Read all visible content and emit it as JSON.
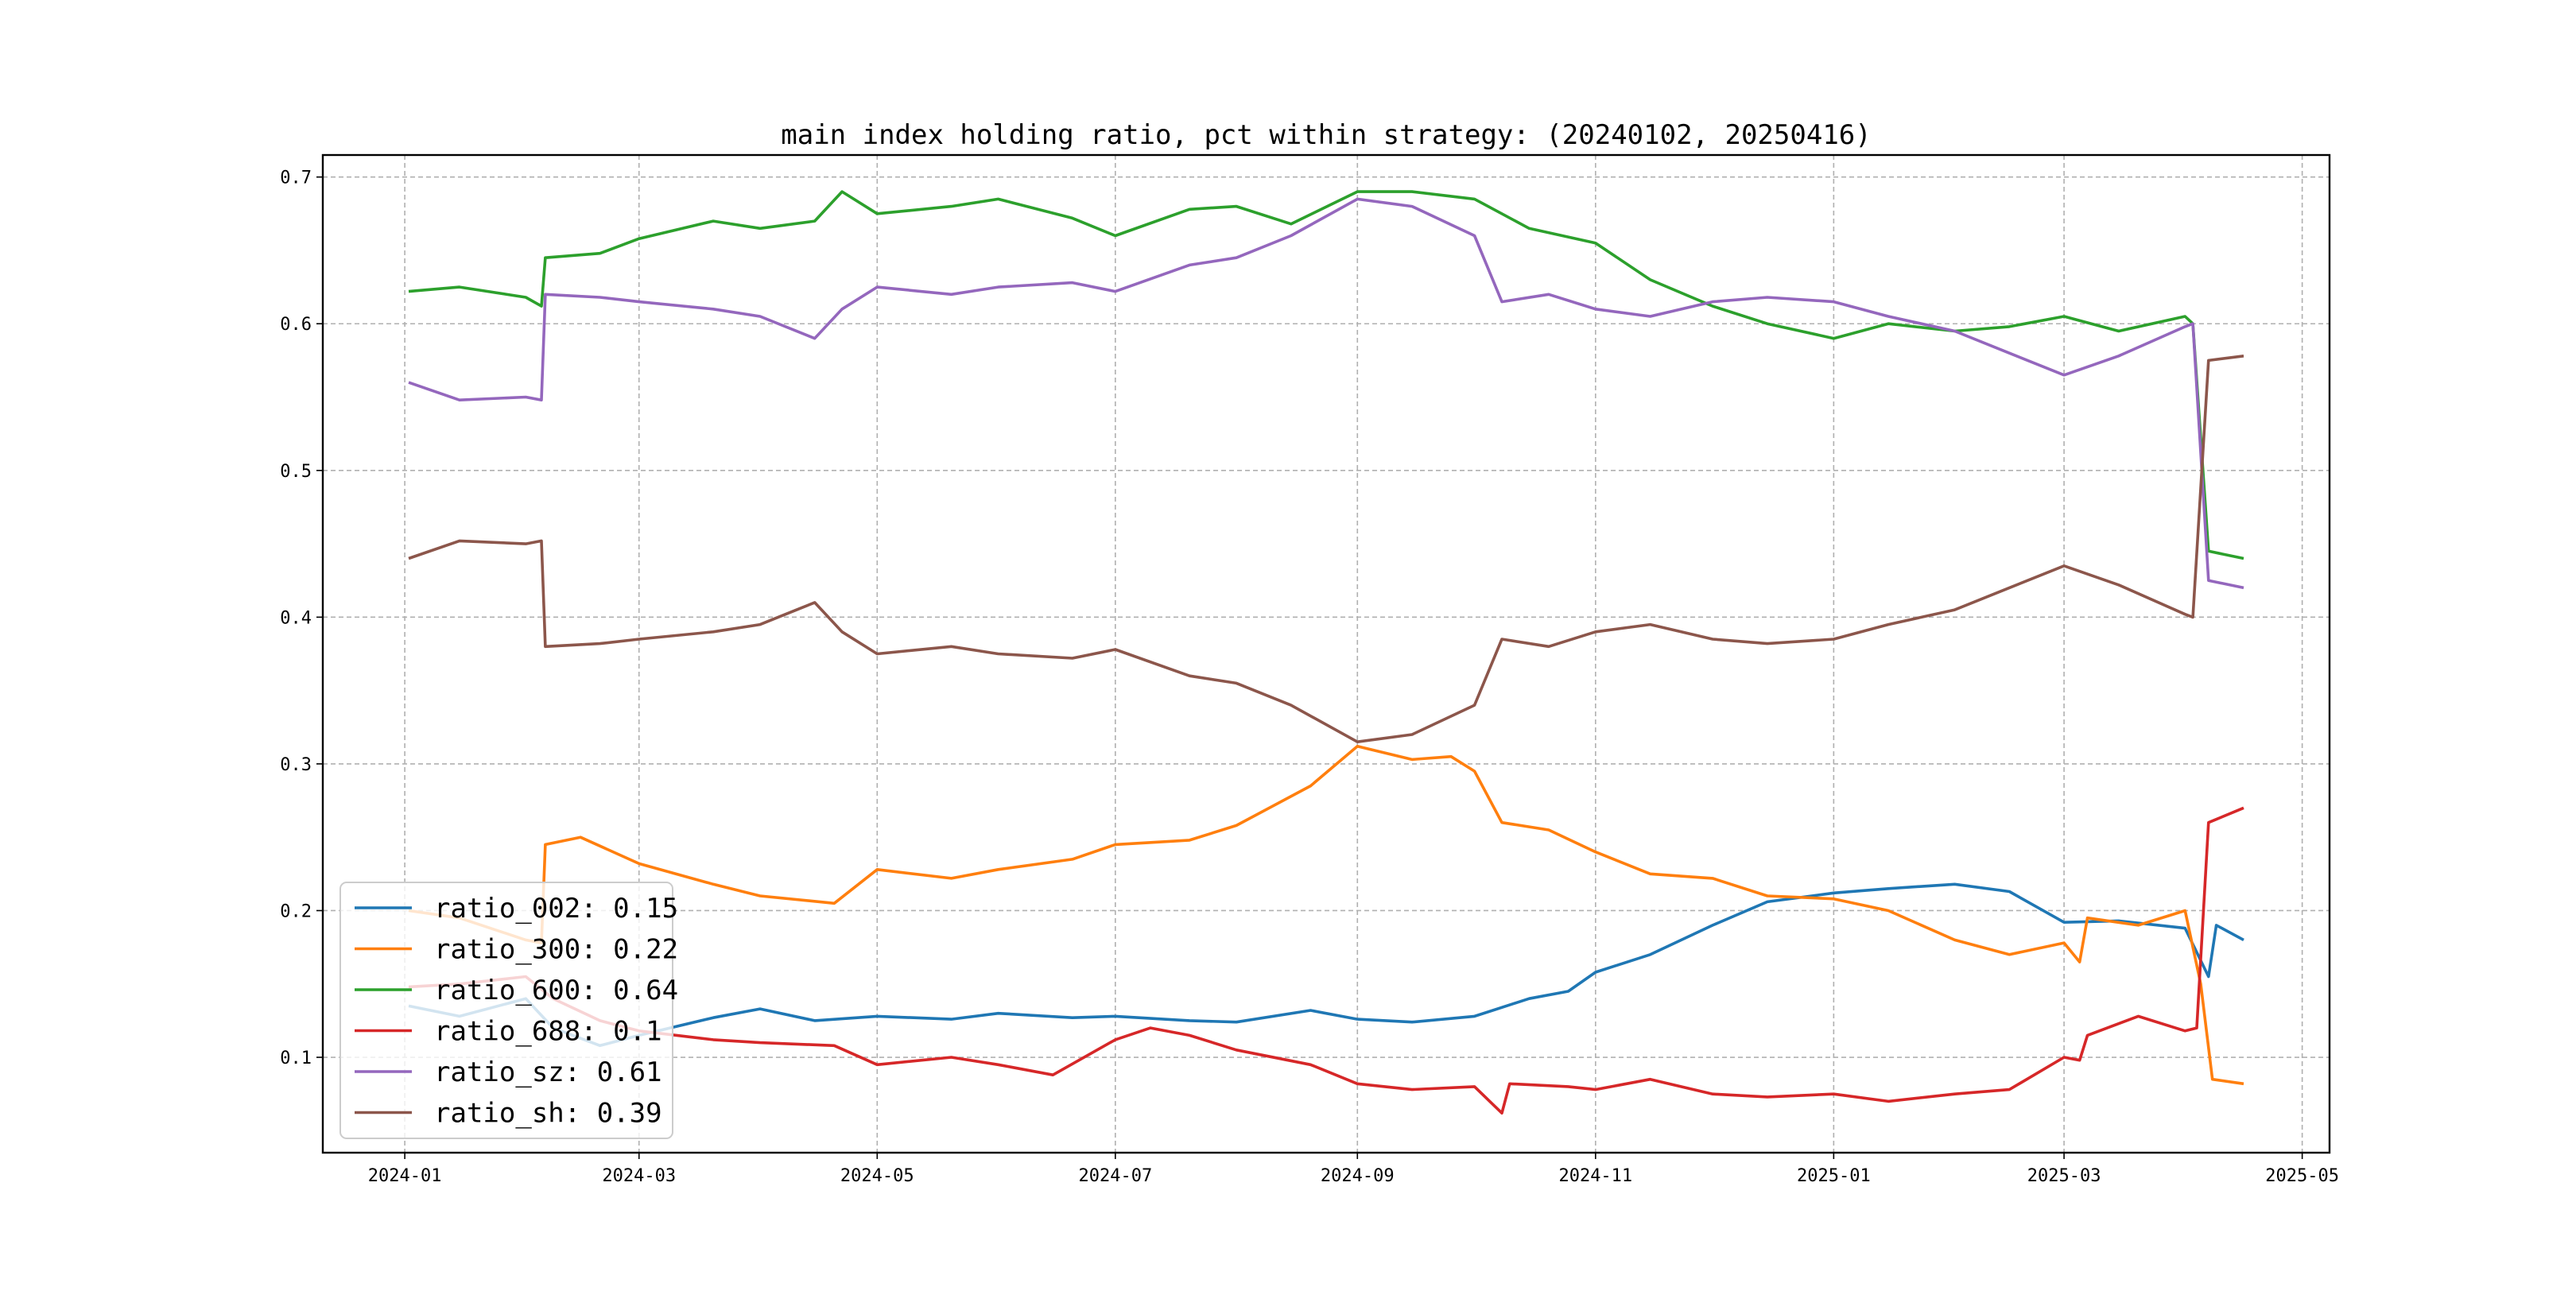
{
  "chart_data": {
    "type": "line",
    "title": "main index holding ratio, pct within strategy: (20240102, 20250416)",
    "xlabel": "",
    "ylabel": "",
    "xlim": [
      "2023-12-11",
      "2025-05-08"
    ],
    "ylim": [
      0.035,
      0.715
    ],
    "x_ticks": [
      "2024-01",
      "2024-03",
      "2024-05",
      "2024-07",
      "2024-09",
      "2024-11",
      "2025-01",
      "2025-03",
      "2025-05"
    ],
    "y_ticks": [
      0.1,
      0.2,
      0.3,
      0.4,
      0.5,
      0.6,
      0.7
    ],
    "grid": true,
    "legend_position": "lower-left",
    "series": [
      {
        "name": "ratio_002: 0.15",
        "color": "#1f77b4",
        "points": [
          [
            "2024-01-02",
            0.135
          ],
          [
            "2024-01-15",
            0.128
          ],
          [
            "2024-02-01",
            0.14
          ],
          [
            "2024-02-08",
            0.12
          ],
          [
            "2024-02-20",
            0.108
          ],
          [
            "2024-03-01",
            0.115
          ],
          [
            "2024-03-20",
            0.127
          ],
          [
            "2024-04-01",
            0.133
          ],
          [
            "2024-04-15",
            0.125
          ],
          [
            "2024-05-01",
            0.128
          ],
          [
            "2024-05-20",
            0.126
          ],
          [
            "2024-06-01",
            0.13
          ],
          [
            "2024-06-20",
            0.127
          ],
          [
            "2024-07-01",
            0.128
          ],
          [
            "2024-07-20",
            0.125
          ],
          [
            "2024-08-01",
            0.124
          ],
          [
            "2024-08-20",
            0.132
          ],
          [
            "2024-09-01",
            0.126
          ],
          [
            "2024-09-15",
            0.124
          ],
          [
            "2024-10-01",
            0.128
          ],
          [
            "2024-10-15",
            0.14
          ],
          [
            "2024-10-25",
            0.145
          ],
          [
            "2024-11-01",
            0.158
          ],
          [
            "2024-11-15",
            0.17
          ],
          [
            "2024-12-01",
            0.19
          ],
          [
            "2024-12-15",
            0.206
          ],
          [
            "2025-01-01",
            0.212
          ],
          [
            "2025-01-15",
            0.215
          ],
          [
            "2025-02-01",
            0.218
          ],
          [
            "2025-02-15",
            0.213
          ],
          [
            "2025-03-01",
            0.192
          ],
          [
            "2025-03-15",
            0.193
          ],
          [
            "2025-04-01",
            0.188
          ],
          [
            "2025-04-07",
            0.155
          ],
          [
            "2025-04-09",
            0.19
          ],
          [
            "2025-04-16",
            0.18
          ]
        ]
      },
      {
        "name": "ratio_300: 0.22",
        "color": "#ff7f0e",
        "points": [
          [
            "2024-01-02",
            0.2
          ],
          [
            "2024-01-15",
            0.195
          ],
          [
            "2024-02-01",
            0.18
          ],
          [
            "2024-02-05",
            0.178
          ],
          [
            "2024-02-06",
            0.245
          ],
          [
            "2024-02-15",
            0.25
          ],
          [
            "2024-03-01",
            0.232
          ],
          [
            "2024-03-20",
            0.218
          ],
          [
            "2024-04-01",
            0.21
          ],
          [
            "2024-04-20",
            0.205
          ],
          [
            "2024-05-01",
            0.228
          ],
          [
            "2024-05-20",
            0.222
          ],
          [
            "2024-06-01",
            0.228
          ],
          [
            "2024-06-20",
            0.235
          ],
          [
            "2024-07-01",
            0.245
          ],
          [
            "2024-07-20",
            0.248
          ],
          [
            "2024-08-01",
            0.258
          ],
          [
            "2024-08-20",
            0.285
          ],
          [
            "2024-09-01",
            0.312
          ],
          [
            "2024-09-15",
            0.303
          ],
          [
            "2024-09-25",
            0.305
          ],
          [
            "2024-10-01",
            0.295
          ],
          [
            "2024-10-08",
            0.26
          ],
          [
            "2024-10-20",
            0.255
          ],
          [
            "2024-11-01",
            0.24
          ],
          [
            "2024-11-15",
            0.225
          ],
          [
            "2024-12-01",
            0.222
          ],
          [
            "2024-12-15",
            0.21
          ],
          [
            "2025-01-01",
            0.208
          ],
          [
            "2025-01-15",
            0.2
          ],
          [
            "2025-02-01",
            0.18
          ],
          [
            "2025-02-15",
            0.17
          ],
          [
            "2025-03-01",
            0.178
          ],
          [
            "2025-03-05",
            0.165
          ],
          [
            "2025-03-07",
            0.195
          ],
          [
            "2025-03-20",
            0.19
          ],
          [
            "2025-04-01",
            0.2
          ],
          [
            "2025-04-05",
            0.15
          ],
          [
            "2025-04-08",
            0.085
          ],
          [
            "2025-04-16",
            0.082
          ]
        ]
      },
      {
        "name": "ratio_600: 0.64",
        "color": "#2ca02c",
        "points": [
          [
            "2024-01-02",
            0.622
          ],
          [
            "2024-01-15",
            0.625
          ],
          [
            "2024-02-01",
            0.618
          ],
          [
            "2024-02-05",
            0.612
          ],
          [
            "2024-02-06",
            0.645
          ],
          [
            "2024-02-20",
            0.648
          ],
          [
            "2024-03-01",
            0.658
          ],
          [
            "2024-03-20",
            0.67
          ],
          [
            "2024-04-01",
            0.665
          ],
          [
            "2024-04-15",
            0.67
          ],
          [
            "2024-04-22",
            0.69
          ],
          [
            "2024-05-01",
            0.675
          ],
          [
            "2024-05-20",
            0.68
          ],
          [
            "2024-06-01",
            0.685
          ],
          [
            "2024-06-20",
            0.672
          ],
          [
            "2024-07-01",
            0.66
          ],
          [
            "2024-07-20",
            0.678
          ],
          [
            "2024-08-01",
            0.68
          ],
          [
            "2024-08-15",
            0.668
          ],
          [
            "2024-09-01",
            0.69
          ],
          [
            "2024-09-15",
            0.69
          ],
          [
            "2024-10-01",
            0.685
          ],
          [
            "2024-10-15",
            0.665
          ],
          [
            "2024-11-01",
            0.655
          ],
          [
            "2024-11-15",
            0.63
          ],
          [
            "2024-12-01",
            0.612
          ],
          [
            "2024-12-15",
            0.6
          ],
          [
            "2025-01-01",
            0.59
          ],
          [
            "2025-01-15",
            0.6
          ],
          [
            "2025-02-01",
            0.595
          ],
          [
            "2025-02-15",
            0.598
          ],
          [
            "2025-03-01",
            0.605
          ],
          [
            "2025-03-15",
            0.595
          ],
          [
            "2025-04-01",
            0.605
          ],
          [
            "2025-04-03",
            0.6
          ],
          [
            "2025-04-07",
            0.445
          ],
          [
            "2025-04-16",
            0.44
          ]
        ]
      },
      {
        "name": "ratio_688: 0.1",
        "color": "#d62728",
        "points": [
          [
            "2024-01-02",
            0.148
          ],
          [
            "2024-01-15",
            0.15
          ],
          [
            "2024-02-01",
            0.155
          ],
          [
            "2024-02-08",
            0.14
          ],
          [
            "2024-02-20",
            0.125
          ],
          [
            "2024-03-01",
            0.118
          ],
          [
            "2024-03-20",
            0.112
          ],
          [
            "2024-04-01",
            0.11
          ],
          [
            "2024-04-20",
            0.108
          ],
          [
            "2024-05-01",
            0.095
          ],
          [
            "2024-05-20",
            0.1
          ],
          [
            "2024-06-01",
            0.095
          ],
          [
            "2024-06-15",
            0.088
          ],
          [
            "2024-07-01",
            0.112
          ],
          [
            "2024-07-10",
            0.12
          ],
          [
            "2024-07-20",
            0.115
          ],
          [
            "2024-08-01",
            0.105
          ],
          [
            "2024-08-20",
            0.095
          ],
          [
            "2024-09-01",
            0.082
          ],
          [
            "2024-09-15",
            0.078
          ],
          [
            "2024-10-01",
            0.08
          ],
          [
            "2024-10-08",
            0.062
          ],
          [
            "2024-10-10",
            0.082
          ],
          [
            "2024-10-25",
            0.08
          ],
          [
            "2024-11-01",
            0.078
          ],
          [
            "2024-11-15",
            0.085
          ],
          [
            "2024-12-01",
            0.075
          ],
          [
            "2024-12-15",
            0.073
          ],
          [
            "2025-01-01",
            0.075
          ],
          [
            "2025-01-15",
            0.07
          ],
          [
            "2025-02-01",
            0.075
          ],
          [
            "2025-02-15",
            0.078
          ],
          [
            "2025-03-01",
            0.1
          ],
          [
            "2025-03-05",
            0.098
          ],
          [
            "2025-03-07",
            0.115
          ],
          [
            "2025-03-20",
            0.128
          ],
          [
            "2025-04-01",
            0.118
          ],
          [
            "2025-04-04",
            0.12
          ],
          [
            "2025-04-07",
            0.26
          ],
          [
            "2025-04-16",
            0.27
          ]
        ]
      },
      {
        "name": "ratio_sz: 0.61",
        "color": "#9467bd",
        "points": [
          [
            "2024-01-02",
            0.56
          ],
          [
            "2024-01-15",
            0.548
          ],
          [
            "2024-02-01",
            0.55
          ],
          [
            "2024-02-05",
            0.548
          ],
          [
            "2024-02-06",
            0.62
          ],
          [
            "2024-02-20",
            0.618
          ],
          [
            "2024-03-01",
            0.615
          ],
          [
            "2024-03-20",
            0.61
          ],
          [
            "2024-04-01",
            0.605
          ],
          [
            "2024-04-15",
            0.59
          ],
          [
            "2024-04-22",
            0.61
          ],
          [
            "2024-05-01",
            0.625
          ],
          [
            "2024-05-20",
            0.62
          ],
          [
            "2024-06-01",
            0.625
          ],
          [
            "2024-06-20",
            0.628
          ],
          [
            "2024-07-01",
            0.622
          ],
          [
            "2024-07-20",
            0.64
          ],
          [
            "2024-08-01",
            0.645
          ],
          [
            "2024-08-15",
            0.66
          ],
          [
            "2024-09-01",
            0.685
          ],
          [
            "2024-09-15",
            0.68
          ],
          [
            "2024-10-01",
            0.66
          ],
          [
            "2024-10-08",
            0.615
          ],
          [
            "2024-10-20",
            0.62
          ],
          [
            "2024-11-01",
            0.61
          ],
          [
            "2024-11-15",
            0.605
          ],
          [
            "2024-12-01",
            0.615
          ],
          [
            "2024-12-15",
            0.618
          ],
          [
            "2025-01-01",
            0.615
          ],
          [
            "2025-01-15",
            0.605
          ],
          [
            "2025-02-01",
            0.595
          ],
          [
            "2025-02-15",
            0.58
          ],
          [
            "2025-03-01",
            0.565
          ],
          [
            "2025-03-15",
            0.578
          ],
          [
            "2025-04-01",
            0.598
          ],
          [
            "2025-04-03",
            0.6
          ],
          [
            "2025-04-07",
            0.425
          ],
          [
            "2025-04-16",
            0.42
          ]
        ]
      },
      {
        "name": "ratio_sh: 0.39",
        "color": "#8c564b",
        "points": [
          [
            "2024-01-02",
            0.44
          ],
          [
            "2024-01-15",
            0.452
          ],
          [
            "2024-02-01",
            0.45
          ],
          [
            "2024-02-05",
            0.452
          ],
          [
            "2024-02-06",
            0.38
          ],
          [
            "2024-02-20",
            0.382
          ],
          [
            "2024-03-01",
            0.385
          ],
          [
            "2024-03-20",
            0.39
          ],
          [
            "2024-04-01",
            0.395
          ],
          [
            "2024-04-15",
            0.41
          ],
          [
            "2024-04-22",
            0.39
          ],
          [
            "2024-05-01",
            0.375
          ],
          [
            "2024-05-20",
            0.38
          ],
          [
            "2024-06-01",
            0.375
          ],
          [
            "2024-06-20",
            0.372
          ],
          [
            "2024-07-01",
            0.378
          ],
          [
            "2024-07-20",
            0.36
          ],
          [
            "2024-08-01",
            0.355
          ],
          [
            "2024-08-15",
            0.34
          ],
          [
            "2024-09-01",
            0.315
          ],
          [
            "2024-09-15",
            0.32
          ],
          [
            "2024-10-01",
            0.34
          ],
          [
            "2024-10-08",
            0.385
          ],
          [
            "2024-10-20",
            0.38
          ],
          [
            "2024-11-01",
            0.39
          ],
          [
            "2024-11-15",
            0.395
          ],
          [
            "2024-12-01",
            0.385
          ],
          [
            "2024-12-15",
            0.382
          ],
          [
            "2025-01-01",
            0.385
          ],
          [
            "2025-01-15",
            0.395
          ],
          [
            "2025-02-01",
            0.405
          ],
          [
            "2025-02-15",
            0.42
          ],
          [
            "2025-03-01",
            0.435
          ],
          [
            "2025-03-15",
            0.422
          ],
          [
            "2025-04-01",
            0.402
          ],
          [
            "2025-04-03",
            0.4
          ],
          [
            "2025-04-07",
            0.575
          ],
          [
            "2025-04-16",
            0.578
          ]
        ]
      }
    ]
  }
}
